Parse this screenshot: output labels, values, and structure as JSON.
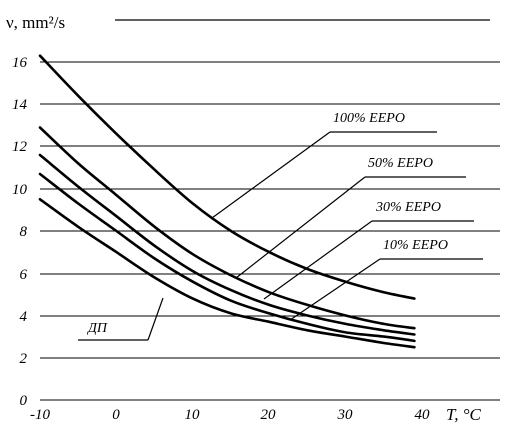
{
  "chart_data": {
    "type": "line",
    "ylabel": "ν, mm²/s",
    "xlabel": "T, °C",
    "xlim": [
      -10,
      40
    ],
    "ylim": [
      0,
      16
    ],
    "grid": "horizontal",
    "x_ticks": [
      "-10",
      "0",
      "10",
      "20",
      "30",
      "40"
    ],
    "y_ticks": [
      "0",
      "2",
      "4",
      "6",
      "8",
      "10",
      "12",
      "14",
      "16"
    ],
    "series": [
      {
        "name": "100% EEPO",
        "x": [
          -10,
          -5,
          0,
          5,
          10,
          15,
          20,
          25,
          30,
          35,
          39
        ],
        "y": [
          16.3,
          14.4,
          12.6,
          10.9,
          9.3,
          8.0,
          7.0,
          6.2,
          5.6,
          5.1,
          4.8
        ]
      },
      {
        "name": "50% EEPO",
        "x": [
          -10,
          -5,
          0,
          5,
          10,
          15,
          20,
          25,
          30,
          35,
          39
        ],
        "y": [
          12.9,
          11.2,
          9.7,
          8.2,
          6.9,
          5.9,
          5.1,
          4.5,
          4.0,
          3.6,
          3.4
        ]
      },
      {
        "name": "30% EEPO",
        "x": [
          -10,
          -5,
          0,
          5,
          10,
          15,
          20,
          25,
          30,
          35,
          39
        ],
        "y": [
          11.6,
          10.1,
          8.7,
          7.3,
          6.1,
          5.2,
          4.5,
          4.0,
          3.6,
          3.3,
          3.1
        ]
      },
      {
        "name": "10% EEPO",
        "x": [
          -10,
          -5,
          0,
          5,
          10,
          15,
          20,
          25,
          30,
          35,
          39
        ],
        "y": [
          10.7,
          9.3,
          8.0,
          6.7,
          5.6,
          4.7,
          4.1,
          3.6,
          3.2,
          3.0,
          2.8
        ]
      },
      {
        "name": "ДП",
        "x": [
          -10,
          -5,
          0,
          5,
          10,
          15,
          20,
          25,
          30,
          35,
          39
        ],
        "y": [
          9.5,
          8.2,
          7.0,
          5.8,
          4.8,
          4.1,
          3.7,
          3.3,
          3.0,
          2.7,
          2.5
        ]
      }
    ]
  }
}
